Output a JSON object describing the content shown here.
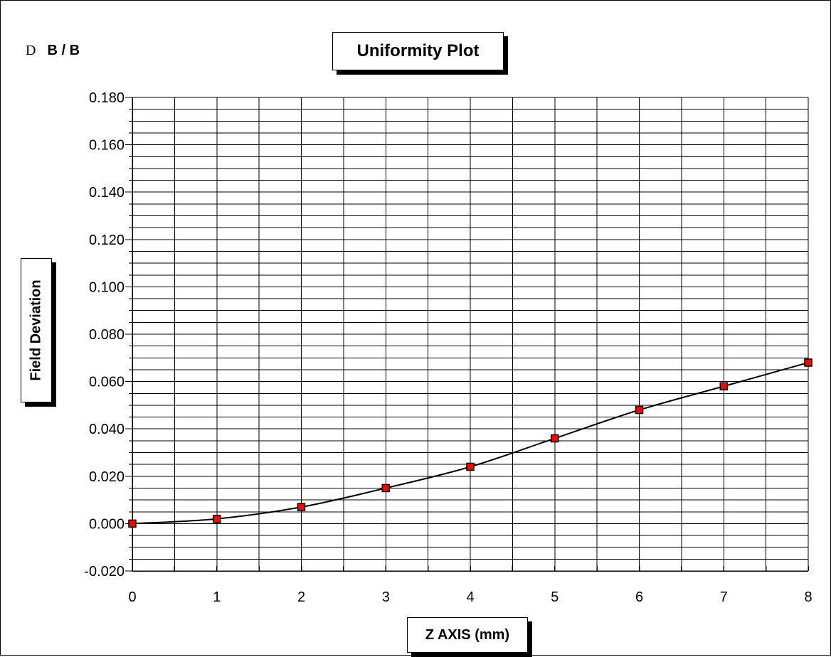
{
  "chart_data": {
    "type": "line",
    "title": "Uniformity Plot",
    "xlabel": "Z  AXIS (mm)",
    "ylabel": "Field Deviation",
    "corner_label": {
      "symbol": "D",
      "text": "B / B"
    },
    "xlim": [
      0,
      8
    ],
    "ylim": [
      -0.02,
      0.18
    ],
    "x_ticks": [
      "0",
      "1",
      "2",
      "3",
      "4",
      "5",
      "6",
      "7",
      "8"
    ],
    "y_ticks": [
      "-0.020",
      "0.000",
      "0.020",
      "0.040",
      "0.060",
      "0.080",
      "0.100",
      "0.120",
      "0.140",
      "0.160",
      "0.180"
    ],
    "grid": true,
    "legend": "none",
    "series": [
      {
        "x": [
          0,
          1,
          2,
          3,
          4,
          5,
          6,
          7,
          8
        ],
        "y": [
          0.0,
          0.002,
          0.007,
          0.015,
          0.024,
          0.036,
          0.048,
          0.058,
          0.068
        ],
        "line_color": "#000000",
        "marker_color": "#ff0000",
        "marker_edge": "#000000"
      }
    ]
  }
}
